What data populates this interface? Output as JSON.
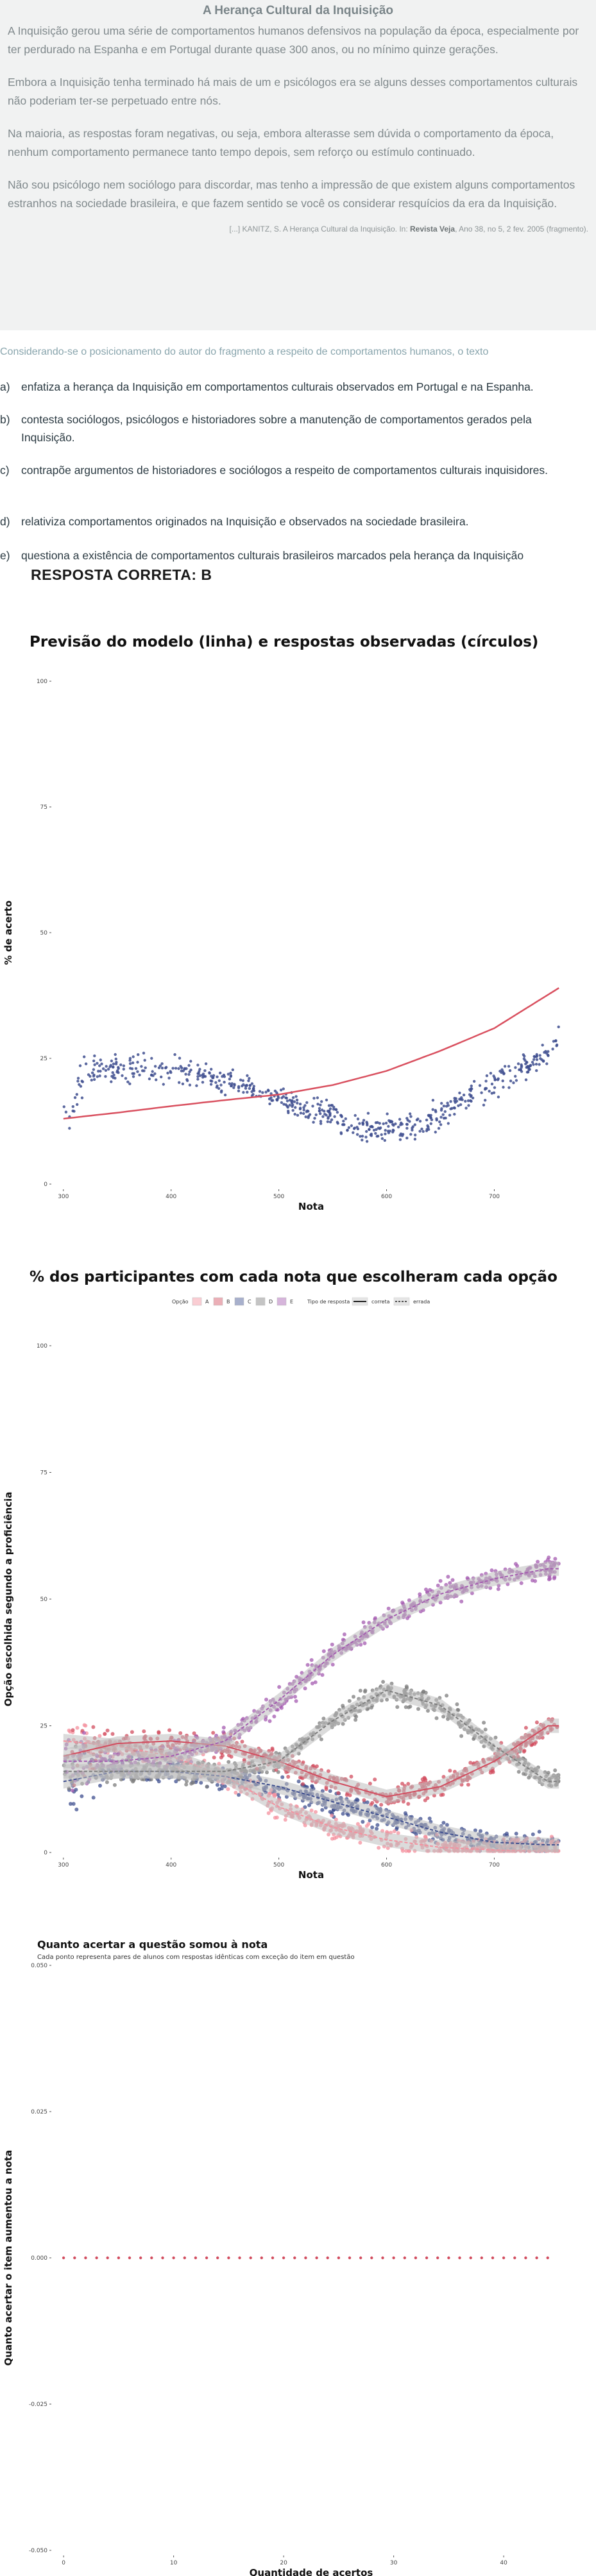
{
  "text": {
    "title": "A Herança Cultural da Inquisição",
    "paragraphs": [
      "A Inquisição gerou uma série de comportamentos humanos defensivos na população da época, especialmente por ter perdurado na Espanha e em Portugal durante quase 300 anos, ou no mínimo quinze gerações.",
      "Embora a Inquisição tenha terminado há mais de um e psicólogos era se alguns desses comportamentos culturais não poderiam ter-se perpetuado entre nós.",
      "Na maioria, as respostas foram negativas, ou seja, embora alterasse sem dúvida o comportamento da época, nenhum comportamento permanece tanto tempo depois, sem reforço ou estímulo continuado.",
      "Não sou psicólogo nem sociólogo para discordar, mas tenho a impressão de que existem alguns comportamentos estranhos na sociedade brasileira, e que fazem sentido se você os considerar resquícios da era da Inquisição."
    ],
    "source_prefix": "[...] KANITZ, S. A Herança Cultural da Inquisição. In:",
    "source_magazine": "Revista Veja",
    "source_suffix": ", Ano 38, no 5, 2 fev. 2005 (fragmento)."
  },
  "question": {
    "stem": "Considerando-se o posicionamento do autor do fragmento a respeito de comportamentos humanos, o texto",
    "alternatives": [
      {
        "letter": "a)",
        "text": "enfatiza a herança da Inquisição em comportamentos culturais observados em Portugal e na Espanha."
      },
      {
        "letter": "b)",
        "text": "contesta sociólogos, psicólogos e historiadores sobre a manutenção de comportamentos gerados pela Inquisição."
      },
      {
        "letter": "c)",
        "text": "contrapõe argumentos de historiadores e sociólogos a respeito de comportamentos culturais inquisidores."
      },
      {
        "letter": "d)",
        "text": "relativiza comportamentos originados na Inquisição e observados na sociedade brasileira."
      },
      {
        "letter": "e)",
        "text": "questiona a existência de comportamentos culturais brasileiros marcados pela herança da Inquisição"
      }
    ],
    "answer": "RESPOSTA CORRETA: B"
  },
  "colors": {
    "model_line": "#d9505f",
    "observed_points": "#3f4f8f",
    "A": "#f4909e",
    "B": "#d24d5f",
    "C": "#3f4f8f",
    "D": "#7d7d7d",
    "E": "#a45bb0"
  },
  "chart_data": [
    {
      "type": "scatter",
      "title": "Previsão do modelo (linha) e respostas observadas (círculos)",
      "xlabel": "Nota",
      "ylabel": "% de acerto",
      "xlim": [
        290,
        770
      ],
      "ylim": [
        0,
        100
      ],
      "xticks": [
        300,
        400,
        500,
        600,
        700
      ],
      "yticks": [
        0,
        25,
        50,
        75,
        100
      ],
      "grid": false,
      "series": [
        {
          "style": "line",
          "x": [
            300,
            350,
            400,
            450,
            500,
            550,
            600,
            650,
            700,
            760
          ],
          "y": [
            13,
            14.2,
            15.5,
            16.7,
            17.8,
            19.7,
            22.5,
            26.5,
            31,
            39
          ]
        },
        {
          "style": "points",
          "x": [
            300,
            320,
            340,
            360,
            380,
            400,
            420,
            440,
            460,
            480,
            500,
            520,
            540,
            560,
            580,
            600,
            620,
            640,
            660,
            680,
            700,
            720,
            740,
            760
          ],
          "y": [
            15,
            22,
            23,
            23,
            23,
            22.5,
            22,
            21,
            20,
            18.5,
            17,
            15.5,
            14,
            12.5,
            11.5,
            11,
            11.5,
            13,
            15,
            17.5,
            20,
            22.5,
            25,
            28
          ]
        }
      ]
    },
    {
      "type": "scatter",
      "title": "% dos participantes com cada nota que escolheram cada opção",
      "xlabel": "Nota",
      "ylabel": "Opção escolhida segundo a proficiência",
      "xlim": [
        290,
        770
      ],
      "ylim": [
        0,
        100
      ],
      "xticks": [
        300,
        400,
        500,
        600,
        700
      ],
      "yticks": [
        0,
        25,
        50,
        75,
        100
      ],
      "legend": {
        "placement": "top",
        "option_title": "Opção",
        "options": [
          "A",
          "B",
          "C",
          "D",
          "E"
        ],
        "type_title": "Tipo de resposta",
        "types": [
          "correta",
          "errada"
        ]
      },
      "correct_option": "B",
      "series": [
        {
          "name": "A",
          "x": [
            300,
            350,
            400,
            450,
            500,
            550,
            600,
            650,
            700,
            750
          ],
          "y": [
            22,
            21,
            19,
            15,
            9,
            5,
            2.5,
            1,
            0.5,
            0.3
          ]
        },
        {
          "name": "B",
          "x": [
            300,
            350,
            400,
            450,
            500,
            550,
            600,
            650,
            700,
            750
          ],
          "y": [
            19,
            21.5,
            22,
            21,
            18,
            14,
            11,
            13,
            18,
            25
          ]
        },
        {
          "name": "C",
          "x": [
            300,
            350,
            400,
            450,
            500,
            550,
            600,
            650,
            700,
            750
          ],
          "y": [
            14,
            16,
            16,
            15,
            13,
            10,
            7,
            4,
            2,
            1.5
          ]
        },
        {
          "name": "D",
          "x": [
            300,
            350,
            400,
            450,
            500,
            550,
            600,
            650,
            700,
            750
          ],
          "y": [
            16,
            16,
            16,
            16,
            18,
            26,
            32,
            29,
            21,
            14
          ]
        },
        {
          "name": "E",
          "x": [
            300,
            350,
            400,
            450,
            500,
            550,
            600,
            650,
            700,
            750
          ],
          "y": [
            18,
            18,
            19,
            22,
            30,
            39,
            46,
            51,
            54,
            56
          ]
        }
      ]
    },
    {
      "type": "scatter",
      "title": "Quanto acertar a questão somou à nota",
      "subtitle": "Cada ponto representa pares de alunos com respostas idênticas com exceção do item em questão",
      "xlabel": "Quantidade de acertos",
      "ylabel": "Quanto acertar o item aumentou a nota",
      "xlim": [
        -1,
        46
      ],
      "ylim": [
        -0.05,
        0.05
      ],
      "xticks": [
        0,
        10,
        20,
        30,
        40
      ],
      "yticks": [
        -0.05,
        -0.025,
        0,
        0.025,
        0.05
      ],
      "ytick_labels": [
        "-0.050",
        "-0.025",
        "0.000",
        "0.025",
        "0.050"
      ],
      "series": [
        {
          "x": [
            0,
            1,
            2,
            3,
            4,
            5,
            6,
            7,
            8,
            9,
            10,
            11,
            12,
            13,
            14,
            15,
            16,
            17,
            18,
            19,
            20,
            21,
            22,
            23,
            24,
            25,
            26,
            27,
            28,
            29,
            30,
            31,
            32,
            33,
            34,
            35,
            36,
            37,
            38,
            39,
            40,
            41,
            42,
            43,
            44
          ],
          "y": [
            0,
            0,
            0,
            0,
            0,
            0,
            0,
            0,
            0,
            0,
            0,
            0,
            0,
            0,
            0,
            0,
            0,
            0,
            0,
            0,
            0,
            0,
            0,
            0,
            0,
            0,
            0,
            0,
            0,
            0,
            0,
            0,
            0,
            0,
            0,
            0,
            0,
            0,
            0,
            0,
            0,
            0,
            0,
            0,
            0
          ]
        }
      ]
    }
  ]
}
